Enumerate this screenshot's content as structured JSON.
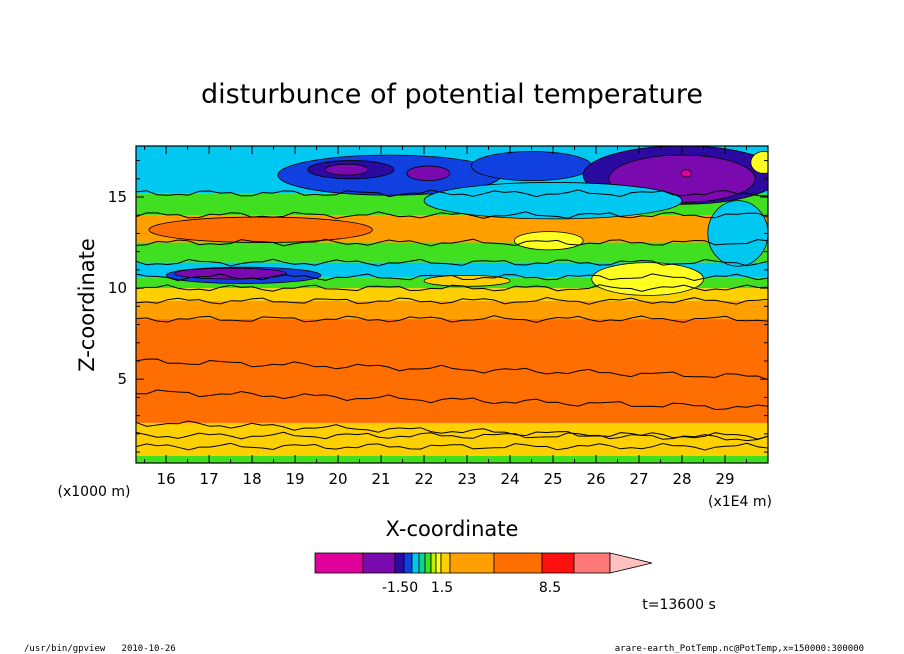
{
  "chart_data": {
    "type": "heatmap",
    "title": "disturbunce of potential temperature",
    "xlabel": "X-coordinate",
    "ylabel": "Z-coordinate",
    "x_unit_label": "(x1E4 m)",
    "y_unit_label": "(x1000 m)",
    "xlim": [
      15.3,
      30.0
    ],
    "ylim": [
      0.4,
      17.8
    ],
    "x_ticks": [
      16,
      17,
      18,
      19,
      20,
      21,
      22,
      23,
      24,
      25,
      26,
      27,
      28,
      29
    ],
    "y_ticks": [
      5,
      10,
      15
    ],
    "color_levels": [
      {
        "color": "#e0009a"
      },
      {
        "color": "#7a0ab0"
      },
      {
        "color": "#2a0aa0"
      },
      {
        "color": "#1040e0"
      },
      {
        "color": "#00c8f0"
      },
      {
        "color": "#00d890"
      },
      {
        "color": "#40e020"
      },
      {
        "color": "#c0f000"
      },
      {
        "color": "#ffff20"
      },
      {
        "color": "#ffd000"
      },
      {
        "color": "#ffa000"
      },
      {
        "color": "#ff6e00"
      },
      {
        "color": "#ff1010"
      },
      {
        "color": "#ff7878"
      },
      {
        "color": "#ffc0c0"
      }
    ],
    "colorbar_labels": [
      "-1.50",
      "1.5",
      "8.5"
    ],
    "bands": [
      {
        "z0": 0.4,
        "z1": 0.8,
        "color": "#40e020"
      },
      {
        "z0": 0.8,
        "z1": 2.6,
        "color": "#ffd000"
      },
      {
        "z0": 2.6,
        "z1": 8.3,
        "color": "#ff6e00"
      },
      {
        "z0": 8.3,
        "z1": 9.3,
        "color": "#ffa000"
      },
      {
        "z0": 9.3,
        "z1": 10.0,
        "color": "#ffd000"
      },
      {
        "z0": 10.0,
        "z1": 10.6,
        "color": "#40e020"
      },
      {
        "z0": 10.6,
        "z1": 11.4,
        "color": "#00c8f0"
      },
      {
        "z0": 11.4,
        "z1": 12.5,
        "color": "#40e020"
      },
      {
        "z0": 12.5,
        "z1": 14.0,
        "color": "#ffa000"
      },
      {
        "z0": 14.0,
        "z1": 15.2,
        "color": "#40e020"
      },
      {
        "z0": 15.2,
        "z1": 17.8,
        "color": "#00c8f0"
      }
    ],
    "features": [
      {
        "x": 17.8,
        "z": 10.7,
        "rx": 1.8,
        "rz": 0.45,
        "color": "#1040e0"
      },
      {
        "x": 17.5,
        "z": 10.8,
        "rx": 1.3,
        "rz": 0.3,
        "color": "#7a0ab0"
      },
      {
        "x": 18.2,
        "z": 13.2,
        "rx": 2.6,
        "rz": 0.7,
        "color": "#ff6e00"
      },
      {
        "x": 21.2,
        "z": 16.2,
        "rx": 2.6,
        "rz": 1.1,
        "color": "#1040e0"
      },
      {
        "x": 20.3,
        "z": 16.5,
        "rx": 1.0,
        "rz": 0.5,
        "color": "#2a0aa0"
      },
      {
        "x": 20.2,
        "z": 16.5,
        "rx": 0.5,
        "rz": 0.3,
        "color": "#7a0ab0"
      },
      {
        "x": 22.1,
        "z": 16.3,
        "rx": 0.5,
        "rz": 0.4,
        "color": "#7a0ab0"
      },
      {
        "x": 24.5,
        "z": 16.7,
        "rx": 1.4,
        "rz": 0.8,
        "color": "#1040e0"
      },
      {
        "x": 28.0,
        "z": 16.2,
        "rx": 2.3,
        "rz": 1.6,
        "color": "#2a0aa0"
      },
      {
        "x": 28.0,
        "z": 16.0,
        "rx": 1.7,
        "rz": 1.3,
        "color": "#7a0ab0"
      },
      {
        "x": 28.1,
        "z": 16.3,
        "rx": 0.12,
        "rz": 0.2,
        "color": "#e0009a"
      },
      {
        "x": 29.9,
        "z": 16.9,
        "rx": 0.3,
        "rz": 0.6,
        "color": "#ffff20"
      },
      {
        "x": 25.0,
        "z": 14.8,
        "rx": 3.0,
        "rz": 1.0,
        "color": "#00c8f0"
      },
      {
        "x": 24.9,
        "z": 12.6,
        "rx": 0.8,
        "rz": 0.5,
        "color": "#ffff20"
      },
      {
        "x": 27.2,
        "z": 10.5,
        "rx": 1.3,
        "rz": 0.9,
        "color": "#ffff20"
      },
      {
        "x": 29.3,
        "z": 13.0,
        "rx": 0.7,
        "rz": 1.8,
        "color": "#00c8f0"
      },
      {
        "x": 23.0,
        "z": 10.4,
        "rx": 1.0,
        "rz": 0.3,
        "color": "#ffd000"
      }
    ],
    "contour_lines": [
      1.3,
      1.9,
      2.6,
      4.3,
      6.0,
      8.3,
      9.3,
      10.0,
      10.6,
      11.4,
      12.5,
      14.0,
      15.2
    ]
  },
  "time_label": "t=13600 s",
  "footer": {
    "left": "/usr/bin/gpview   2010-10-26",
    "right": "arare-earth_PotTemp.nc@PotTemp,x=150000:300000"
  }
}
